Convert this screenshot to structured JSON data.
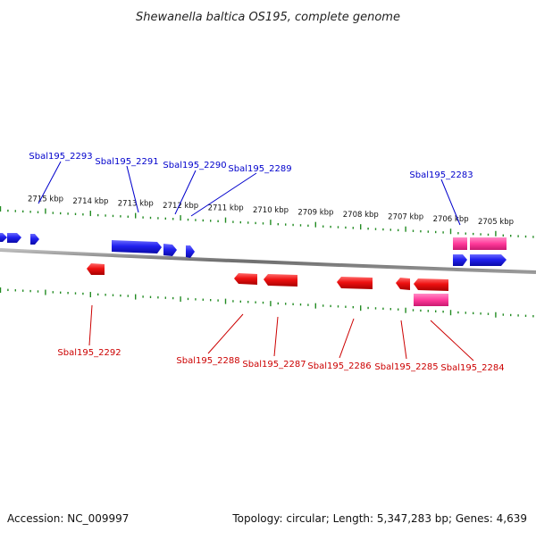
{
  "title": "Shewanella baltica OS195, complete genome",
  "footer": {
    "accession": "Accession: NC_009997",
    "summary": "Topology: circular; Length: 5,347,283 bp; Genes: 4,639"
  },
  "colors": {
    "forward_gene": "#1f1fe6",
    "reverse_gene": "#ee1111",
    "rna_gene": "#ff3a9a",
    "backbone": "#8a8a8a",
    "tick": "#228b22",
    "upper_label": "#0000cc",
    "lower_label": "#cc0000"
  },
  "ticks": [
    {
      "label": "2715 kbp"
    },
    {
      "label": "2714 kbp"
    },
    {
      "label": "2713 kbp"
    },
    {
      "label": "2712 kbp"
    },
    {
      "label": "2711 kbp"
    },
    {
      "label": "2710 kbp"
    },
    {
      "label": "2709 kbp"
    },
    {
      "label": "2708 kbp"
    },
    {
      "label": "2707 kbp"
    },
    {
      "label": "2706 kbp"
    },
    {
      "label": "2705 kbp"
    }
  ],
  "upper_genes": [
    {
      "label": "Sbal195_2293"
    },
    {
      "label": "Sbal195_2291"
    },
    {
      "label": "Sbal195_2290"
    },
    {
      "label": "Sbal195_2289"
    },
    {
      "label": "Sbal195_2283"
    }
  ],
  "lower_genes": [
    {
      "label": "Sbal195_2292"
    },
    {
      "label": "Sbal195_2288"
    },
    {
      "label": "Sbal195_2287"
    },
    {
      "label": "Sbal195_2286"
    },
    {
      "label": "Sbal195_2285"
    },
    {
      "label": "Sbal195_2284"
    }
  ]
}
